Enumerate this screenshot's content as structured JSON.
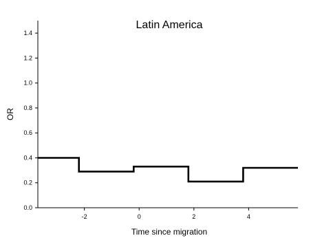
{
  "chart_data": {
    "type": "line",
    "title": "Latin America",
    "xlabel": "Time since migration",
    "ylabel": "OR",
    "xlim": [
      -3.7,
      5.8
    ],
    "ylim": [
      0.0,
      1.5
    ],
    "x_ticks": [
      -2,
      0,
      2,
      4
    ],
    "x_tick_labels": [
      "-2",
      "0",
      "2",
      "4"
    ],
    "y_ticks": [
      0.0,
      0.2,
      0.4,
      0.6,
      0.8,
      1.0,
      1.2,
      1.4
    ],
    "y_tick_labels": [
      "0.0",
      "0.2",
      "0.4",
      "0.6",
      "0.8",
      "1.0",
      "1.2",
      "1.4"
    ],
    "grid": false,
    "series": [
      {
        "step": true,
        "x": [
          -3.7,
          -2.2,
          -2.2,
          -0.2,
          -0.2,
          1.8,
          1.8,
          3.8,
          3.8,
          5.8
        ],
        "y": [
          0.4,
          0.4,
          0.29,
          0.29,
          0.33,
          0.33,
          0.21,
          0.21,
          0.32,
          0.32
        ],
        "color": "#000000"
      }
    ]
  }
}
